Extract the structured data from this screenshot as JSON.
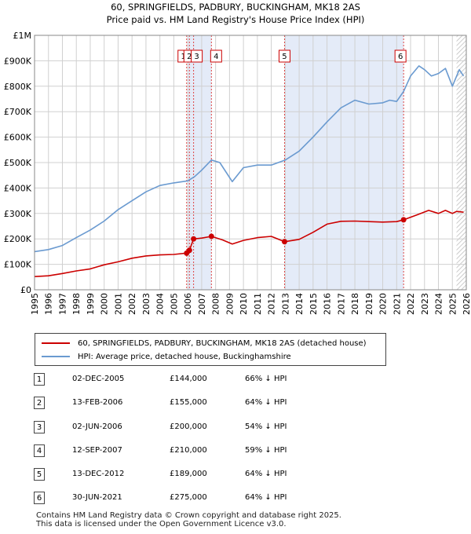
{
  "chart_data": {
    "type": "line",
    "title": "60, SPRINGFIELDS, PADBURY, BUCKINGHAM, MK18 2AS",
    "subtitle": "Price paid vs. HM Land Registry's House Price Index (HPI)",
    "xlim": [
      1995,
      2026
    ],
    "ylim": [
      0,
      1000000
    ],
    "y_ticks": [
      0,
      100000,
      200000,
      300000,
      400000,
      500000,
      600000,
      700000,
      800000,
      900000,
      1000000
    ],
    "y_tick_labels": [
      "£0",
      "£100K",
      "£200K",
      "£300K",
      "£400K",
      "£500K",
      "£600K",
      "£700K",
      "£800K",
      "£900K",
      "£1M"
    ],
    "x_ticks": [
      1995,
      1996,
      1997,
      1998,
      1999,
      2000,
      2001,
      2002,
      2003,
      2004,
      2005,
      2006,
      2007,
      2008,
      2009,
      2010,
      2011,
      2012,
      2013,
      2014,
      2015,
      2016,
      2017,
      2018,
      2019,
      2020,
      2021,
      2022,
      2023,
      2024,
      2025,
      2026
    ],
    "grid": true,
    "hatched_from": 2025.3,
    "shaded_spans": [
      [
        2006.0,
        2007.7
      ],
      [
        2012.95,
        2021.5
      ]
    ],
    "series": [
      {
        "name": "60, SPRINGFIELDS, PADBURY, BUCKINGHAM, MK18 2AS (detached house)",
        "color": "#cc0000",
        "x": [
          1995.0,
          1996.0,
          1997.0,
          1998.0,
          1999.0,
          2000.0,
          2001.0,
          2002.0,
          2003.0,
          2004.0,
          2005.0,
          2005.92,
          2006.12,
          2006.42,
          2007.0,
          2007.7,
          2008.5,
          2009.2,
          2010.0,
          2011.0,
          2012.0,
          2012.95,
          2014.0,
          2015.0,
          2016.0,
          2017.0,
          2018.0,
          2019.0,
          2020.0,
          2021.0,
          2021.5,
          2022.5,
          2023.3,
          2024.0,
          2024.5,
          2025.0,
          2025.3,
          2025.8
        ],
        "y": [
          52000,
          55000,
          64000,
          74000,
          82000,
          98000,
          110000,
          124000,
          133000,
          137000,
          139000,
          144000,
          155000,
          200000,
          203000,
          210000,
          196000,
          180000,
          194000,
          205000,
          210000,
          189000,
          198000,
          226000,
          258000,
          269000,
          270000,
          268000,
          266000,
          268000,
          275000,
          295000,
          312000,
          300000,
          312000,
          300000,
          308000,
          305000
        ]
      },
      {
        "name": "HPI: Average price, detached house, Buckinghamshire",
        "color": "#6a9ad0",
        "x": [
          1995.0,
          1996.0,
          1997.0,
          1998.0,
          1999.0,
          2000.0,
          2001.0,
          2002.0,
          2003.0,
          2004.0,
          2005.0,
          2006.0,
          2006.5,
          2007.0,
          2007.7,
          2008.3,
          2009.2,
          2010.0,
          2011.0,
          2012.0,
          2013.0,
          2014.0,
          2015.0,
          2016.0,
          2017.0,
          2018.0,
          2019.0,
          2020.0,
          2020.5,
          2021.0,
          2021.5,
          2022.0,
          2022.6,
          2023.0,
          2023.5,
          2024.0,
          2024.5,
          2025.0,
          2025.5,
          2025.8
        ],
        "y": [
          150000,
          158000,
          174000,
          205000,
          235000,
          270000,
          315000,
          350000,
          385000,
          410000,
          420000,
          428000,
          445000,
          470000,
          510000,
          500000,
          425000,
          480000,
          490000,
          490000,
          510000,
          545000,
          600000,
          660000,
          715000,
          745000,
          730000,
          735000,
          745000,
          740000,
          780000,
          840000,
          880000,
          865000,
          840000,
          850000,
          870000,
          800000,
          865000,
          840000
        ]
      }
    ],
    "legend_position": "bottom"
  },
  "sales": [
    {
      "num": "1",
      "date": "02-DEC-2005",
      "price": "£144,000",
      "hpi": "66% ↓ HPI",
      "year": 2005.92,
      "value": 144000,
      "show_marker_label": true
    },
    {
      "num": "2",
      "date": "13-FEB-2006",
      "price": "£155,000",
      "hpi": "64% ↓ HPI",
      "year": 2006.12,
      "value": 155000,
      "show_marker_label": true
    },
    {
      "num": "3",
      "date": "02-JUN-2006",
      "price": "£200,000",
      "hpi": "54% ↓ HPI",
      "year": 2006.42,
      "value": 200000,
      "show_marker_label": true
    },
    {
      "num": "4",
      "date": "12-SEP-2007",
      "price": "£210,000",
      "hpi": "59% ↓ HPI",
      "year": 2007.7,
      "value": 210000,
      "show_marker_label": true
    },
    {
      "num": "5",
      "date": "13-DEC-2012",
      "price": "£189,000",
      "hpi": "64% ↓ HPI",
      "year": 2012.95,
      "value": 189000,
      "show_marker_label": true
    },
    {
      "num": "6",
      "date": "30-JUN-2021",
      "price": "£275,000",
      "hpi": "64% ↓ HPI",
      "year": 2021.5,
      "value": 275000,
      "show_marker_label": true
    }
  ],
  "footer": {
    "line1": "Contains HM Land Registry data © Crown copyright and database right 2025.",
    "line2": "This data is licensed under the Open Government Licence v3.0."
  }
}
